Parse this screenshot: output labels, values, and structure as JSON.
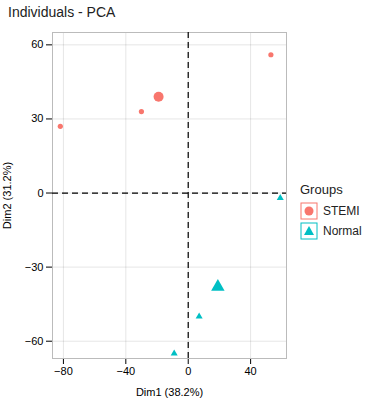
{
  "chart_data": {
    "type": "scatter",
    "title": "Individuals - PCA",
    "x_label": "Dim1 (38.2%)",
    "y_label": "Dim2 (31.2%)",
    "xlim": [
      -87,
      63
    ],
    "ylim": [
      -67,
      65
    ],
    "xticks": [
      -80,
      -40,
      0,
      40
    ],
    "yticks": [
      -60,
      -30,
      0,
      30,
      60
    ],
    "grid": true,
    "legend": "right",
    "legend_title": "Groups",
    "series": [
      {
        "name": "STEMI",
        "color": "#F8766D",
        "marker": "circle",
        "x": [
          -82,
          -30,
          53
        ],
        "y": [
          27,
          33,
          56
        ],
        "centroid": [
          -19,
          39
        ]
      },
      {
        "name": "Normal",
        "color": "#00BFC4",
        "marker": "triangle",
        "x": [
          59,
          7,
          -9
        ],
        "y": [
          -2,
          -50,
          -65
        ],
        "centroid": [
          19,
          -38
        ]
      }
    ]
  }
}
